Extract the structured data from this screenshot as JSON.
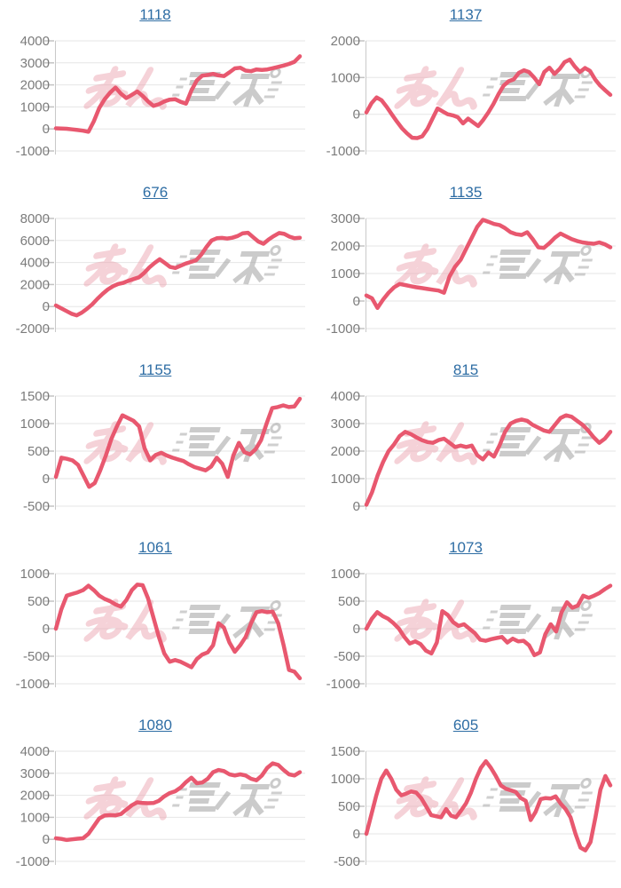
{
  "page": {
    "background": "#ffffff",
    "layout": "grid-2x5-slump-graphs"
  },
  "watermark": {
    "text": "みんレポ",
    "pink_color": "#eda6b2",
    "gray_color": "#a9a9a9"
  },
  "chart_style": {
    "line_color": "#e8586f",
    "title_color": "#2e6da4",
    "axis_label_color": "#7b7b7b",
    "gridline_color": "#e6e6e6",
    "axis_line_color": "#c9c9c9",
    "tick_color": "#c2c2c2",
    "legend": "none",
    "grid": "horizontal-only"
  },
  "chart_data": [
    {
      "type": "line",
      "title": "1118",
      "ylim": [
        -1000,
        4000
      ],
      "ytick_step": 1000,
      "values": [
        30,
        20,
        10,
        -20,
        -50,
        -80,
        -130,
        350,
        950,
        1350,
        1650,
        1880,
        1600,
        1400,
        1550,
        1700,
        1500,
        1250,
        1050,
        1120,
        1250,
        1330,
        1350,
        1230,
        1150,
        1750,
        2200,
        2420,
        2450,
        2500,
        2430,
        2400,
        2570,
        2750,
        2780,
        2650,
        2620,
        2700,
        2680,
        2700,
        2760,
        2820,
        2880,
        2950,
        3050,
        3300
      ]
    },
    {
      "type": "line",
      "title": "1137",
      "ylim": [
        -1000,
        2000
      ],
      "ytick_step": 1000,
      "values": [
        50,
        300,
        460,
        380,
        200,
        0,
        -200,
        -380,
        -520,
        -640,
        -650,
        -600,
        -400,
        -120,
        160,
        80,
        0,
        -30,
        -80,
        -250,
        -120,
        -220,
        -320,
        -150,
        50,
        280,
        550,
        780,
        900,
        950,
        1130,
        1200,
        1150,
        1000,
        820,
        1150,
        1270,
        1100,
        1230,
        1420,
        1490,
        1300,
        1150,
        1260,
        1180,
        950,
        780,
        650,
        530
      ]
    },
    {
      "type": "line",
      "title": "676",
      "ylim": [
        -2000,
        8000
      ],
      "ytick_step": 2000,
      "values": [
        100,
        -150,
        -400,
        -650,
        -800,
        -550,
        -200,
        200,
        700,
        1150,
        1550,
        1850,
        2050,
        2150,
        2350,
        2500,
        2650,
        3050,
        3550,
        3950,
        4300,
        3950,
        3600,
        3500,
        3700,
        3900,
        4050,
        4200,
        4700,
        5400,
        6000,
        6200,
        6230,
        6180,
        6250,
        6400,
        6650,
        6700,
        6300,
        5900,
        5700,
        6100,
        6400,
        6680,
        6600,
        6350,
        6200,
        6250
      ]
    },
    {
      "type": "line",
      "title": "1135",
      "ylim": [
        -1000,
        3000
      ],
      "ytick_step": 1000,
      "values": [
        200,
        100,
        -250,
        50,
        300,
        500,
        620,
        580,
        540,
        500,
        470,
        440,
        410,
        380,
        300,
        900,
        1250,
        1500,
        1900,
        2300,
        2700,
        2950,
        2880,
        2800,
        2760,
        2650,
        2500,
        2430,
        2400,
        2500,
        2250,
        1950,
        1930,
        2100,
        2300,
        2450,
        2350,
        2250,
        2180,
        2130,
        2100,
        2080,
        2130,
        2060,
        1950
      ]
    },
    {
      "type": "line",
      "title": "1155",
      "ylim": [
        -500,
        1500
      ],
      "ytick_step": 500,
      "values": [
        30,
        380,
        360,
        330,
        250,
        50,
        -150,
        -80,
        150,
        420,
        720,
        950,
        1150,
        1100,
        1050,
        950,
        550,
        330,
        430,
        470,
        420,
        380,
        350,
        320,
        260,
        210,
        180,
        150,
        220,
        380,
        270,
        30,
        420,
        650,
        480,
        440,
        530,
        700,
        1000,
        1280,
        1300,
        1330,
        1300,
        1310,
        1450
      ]
    },
    {
      "type": "line",
      "title": "815",
      "ylim": [
        0,
        4000
      ],
      "ytick_step": 1000,
      "values": [
        50,
        500,
        1100,
        1600,
        2000,
        2250,
        2550,
        2700,
        2620,
        2500,
        2400,
        2330,
        2300,
        2400,
        2450,
        2300,
        2150,
        2200,
        2150,
        2200,
        1850,
        1700,
        1950,
        1800,
        2200,
        2700,
        3000,
        3100,
        3150,
        3100,
        2950,
        2850,
        2750,
        2700,
        2950,
        3200,
        3300,
        3250,
        3100,
        2950,
        2750,
        2500,
        2300,
        2450,
        2700
      ]
    },
    {
      "type": "line",
      "title": "1061",
      "ylim": [
        -1000,
        1000
      ],
      "ytick_step": 500,
      "values": [
        0,
        350,
        600,
        630,
        660,
        700,
        780,
        700,
        600,
        540,
        500,
        440,
        400,
        520,
        700,
        800,
        790,
        550,
        200,
        -150,
        -450,
        -600,
        -570,
        -600,
        -650,
        -700,
        -550,
        -470,
        -430,
        -300,
        100,
        20,
        -250,
        -420,
        -300,
        -150,
        100,
        300,
        320,
        300,
        310,
        100,
        -300,
        -750,
        -780,
        -900
      ]
    },
    {
      "type": "line",
      "title": "1073",
      "ylim": [
        -1000,
        1000
      ],
      "ytick_step": 500,
      "values": [
        0,
        180,
        300,
        230,
        180,
        100,
        0,
        -150,
        -270,
        -230,
        -280,
        -400,
        -450,
        -250,
        320,
        250,
        120,
        50,
        80,
        0,
        -80,
        -200,
        -220,
        -190,
        -170,
        -150,
        -250,
        -180,
        -230,
        -220,
        -300,
        -480,
        -430,
        -100,
        80,
        -50,
        300,
        480,
        380,
        420,
        600,
        560,
        600,
        650,
        720,
        780
      ]
    },
    {
      "type": "line",
      "title": "1080",
      "ylim": [
        -1000,
        4000
      ],
      "ytick_step": 1000,
      "values": [
        50,
        20,
        -30,
        0,
        30,
        50,
        250,
        600,
        950,
        1080,
        1100,
        1090,
        1150,
        1350,
        1550,
        1680,
        1650,
        1640,
        1650,
        1750,
        1950,
        2100,
        2180,
        2350,
        2600,
        2800,
        2550,
        2580,
        2750,
        3050,
        3150,
        3100,
        2950,
        2900,
        2950,
        2900,
        2750,
        2680,
        2900,
        3250,
        3450,
        3380,
        3150,
        2950,
        2900,
        3050
      ]
    },
    {
      "type": "line",
      "title": "605",
      "ylim": [
        -500,
        1500
      ],
      "ytick_step": 500,
      "values": [
        0,
        350,
        700,
        1000,
        1150,
        1000,
        800,
        700,
        730,
        770,
        750,
        650,
        500,
        340,
        320,
        300,
        450,
        330,
        300,
        420,
        550,
        750,
        1000,
        1200,
        1320,
        1200,
        1050,
        880,
        820,
        790,
        760,
        650,
        600,
        250,
        400,
        630,
        650,
        640,
        680,
        550,
        450,
        300,
        0,
        -250,
        -300,
        -150,
        300,
        800,
        1050,
        880
      ]
    }
  ]
}
